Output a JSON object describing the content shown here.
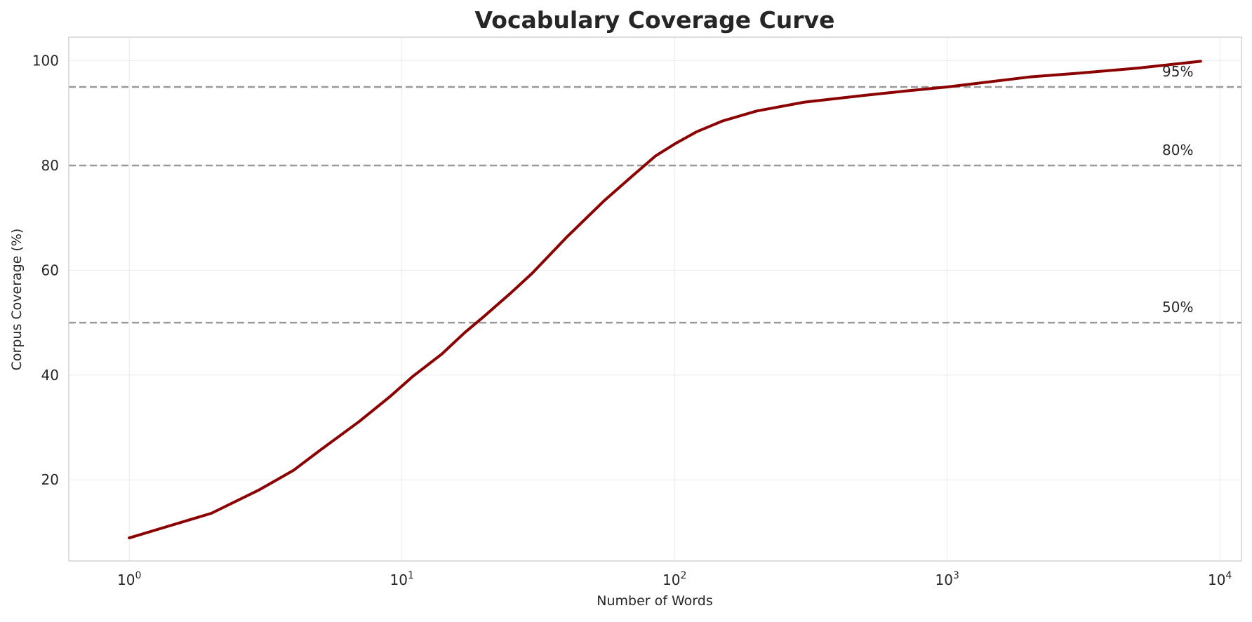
{
  "chart_data": {
    "type": "line",
    "title": "Vocabulary Coverage Curve",
    "xlabel": "Number of Words",
    "ylabel": "Corpus Coverage (%)",
    "xscale": "log",
    "xlim": [
      0.6,
      12000
    ],
    "ylim": [
      4.5,
      104.5
    ],
    "grid": true,
    "x_ticks": [
      {
        "base": "10",
        "exp": "0",
        "value": 1
      },
      {
        "base": "10",
        "exp": "1",
        "value": 10
      },
      {
        "base": "10",
        "exp": "2",
        "value": 100
      },
      {
        "base": "10",
        "exp": "3",
        "value": 1000
      },
      {
        "base": "10",
        "exp": "4",
        "value": 10000
      }
    ],
    "y_ticks": [
      {
        "label": "20",
        "value": 20
      },
      {
        "label": "40",
        "value": 40
      },
      {
        "label": "60",
        "value": 60
      },
      {
        "label": "80",
        "value": 80
      },
      {
        "label": "100",
        "value": 100
      }
    ],
    "reference_lines": [
      {
        "value": 95,
        "label": "95%"
      },
      {
        "value": 80,
        "label": "80%"
      },
      {
        "value": 50,
        "label": "50%"
      }
    ],
    "series": [
      {
        "color": "#8b0000",
        "x": [
          1,
          2,
          3,
          4,
          5,
          7,
          9,
          11,
          14,
          17,
          20,
          25,
          30,
          40,
          55,
          70,
          85,
          100,
          120,
          150,
          200,
          300,
          500,
          700,
          1000,
          2000,
          3000,
          5000,
          8500
        ],
        "y": [
          8.9,
          13.6,
          18.1,
          21.8,
          25.6,
          31.2,
          35.8,
          39.8,
          44.0,
          48.1,
          51.2,
          55.6,
          59.4,
          66.2,
          73.2,
          78.0,
          81.8,
          84.1,
          86.4,
          88.5,
          90.4,
          92.1,
          93.4,
          94.2,
          95.0,
          96.9,
          97.6,
          98.6,
          99.9
        ]
      }
    ]
  }
}
